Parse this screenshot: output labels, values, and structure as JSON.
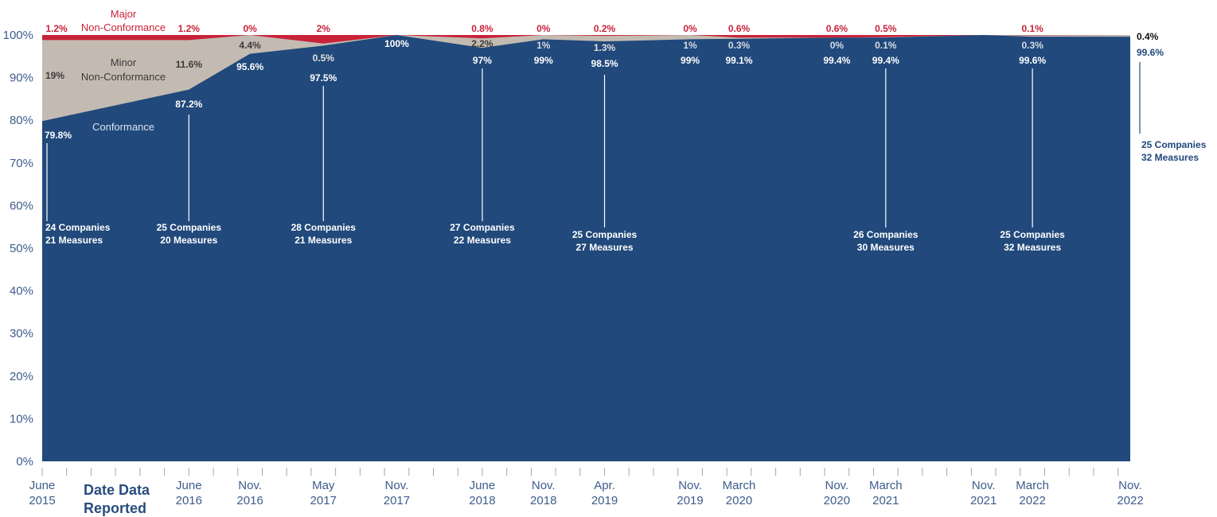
{
  "colors": {
    "conformance": "#21497b",
    "minor": "#c3bbb1",
    "major": "#c8233a",
    "axis_text": "#3d5c8c",
    "minor_text": "#3b3b3b",
    "annotation_light": "#d8dee8"
  },
  "chart_data": {
    "type": "area",
    "stacked": true,
    "title": "",
    "xlabel": "Date Data Reported",
    "ylabel": "",
    "ylim": [
      0,
      100
    ],
    "yticks": [
      "0%",
      "10%",
      "20%",
      "30%",
      "40%",
      "50%",
      "60%",
      "70%",
      "80%",
      "90%",
      "100%"
    ],
    "x": [
      "2015-06",
      "2016-06",
      "2016-11",
      "2017-05",
      "2017-11",
      "2018-06",
      "2018-11",
      "2019-04",
      "2019-11",
      "2020-03",
      "2020-11",
      "2021-03",
      "2021-11",
      "2022-03",
      "2022-11"
    ],
    "x_labels": [
      [
        "June",
        "2015"
      ],
      [
        "June",
        "2016"
      ],
      [
        "Nov.",
        "2016"
      ],
      [
        "May",
        "2017"
      ],
      [
        "Nov.",
        "2017"
      ],
      [
        "June",
        "2018"
      ],
      [
        "Nov.",
        "2018"
      ],
      [
        "Apr.",
        "2019"
      ],
      [
        "Nov.",
        "2019"
      ],
      [
        "March",
        "2020"
      ],
      [
        "Nov.",
        "2020"
      ],
      [
        "March",
        "2021"
      ],
      [
        "Nov.",
        "2021"
      ],
      [
        "March",
        "2022"
      ],
      [
        "Nov.",
        "2022"
      ]
    ],
    "series": [
      {
        "name": "Conformance",
        "values": [
          79.8,
          87.2,
          95.6,
          97.5,
          100,
          97,
          99,
          98.5,
          99,
          99.1,
          99.4,
          99.4,
          100,
          99.6,
          99.6
        ],
        "labels": [
          "79.8%",
          "87.2%",
          "95.6%",
          "97.5%",
          "100%",
          "97%",
          "99%",
          "98.5%",
          "99%",
          "99.1%",
          "99.4%",
          "99.4%",
          "",
          "99.6%",
          "99.6%"
        ]
      },
      {
        "name": "Minor Non-Conformance",
        "values": [
          19,
          11.6,
          4.4,
          0.5,
          0,
          2.2,
          1,
          1.3,
          1,
          0.3,
          0,
          0.1,
          0,
          0.3,
          0.4
        ],
        "labels": [
          "19%",
          "11.6%",
          "4.4%",
          "0.5%",
          "",
          "2.2%",
          "1%",
          "1.3%",
          "1%",
          "0.3%",
          "0%",
          "0.1%",
          "",
          "0.3%",
          "0.4%"
        ]
      },
      {
        "name": "Major Non-Conformance",
        "values": [
          1.2,
          1.2,
          0,
          2,
          0,
          0.8,
          0,
          0.2,
          0,
          0.6,
          0.6,
          0.5,
          0,
          0.1,
          0
        ],
        "labels": [
          "1.2%",
          "1.2%",
          "0%",
          "2%",
          "",
          "0.8%",
          "0%",
          "0.2%",
          "0%",
          "0.6%",
          "0.6%",
          "0.5%",
          "",
          "0.1%",
          ""
        ]
      }
    ],
    "annotations": [
      {
        "x": "2015-06",
        "lines": [
          "24 Companies",
          "21 Measures"
        ]
      },
      {
        "x": "2016-06",
        "lines": [
          "25 Companies",
          "20 Measures"
        ]
      },
      {
        "x": "2017-05",
        "lines": [
          "28 Companies",
          "21 Measures"
        ]
      },
      {
        "x": "2018-06",
        "lines": [
          "27 Companies",
          "22 Measures"
        ]
      },
      {
        "x": "2019-04",
        "lines": [
          "25 Companies",
          "27 Measures"
        ]
      },
      {
        "x": "2021-03",
        "lines": [
          "26 Companies",
          "30 Measures"
        ]
      },
      {
        "x": "2022-03",
        "lines": [
          "25 Companies",
          "32 Measures"
        ]
      },
      {
        "x": "2022-11",
        "lines": [
          "25 Companies",
          "32 Measures"
        ]
      }
    ],
    "legend": {
      "major": [
        "Major",
        "Non-Conformance"
      ],
      "minor": [
        "Minor",
        "Non-Conformance"
      ],
      "conformance": [
        "Conformance"
      ]
    }
  }
}
